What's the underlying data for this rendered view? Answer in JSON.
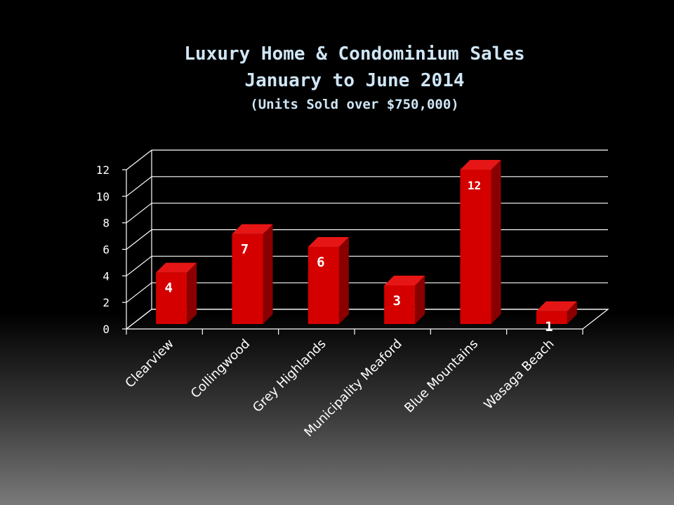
{
  "chart_data": {
    "type": "bar",
    "title": [
      "Luxury Home & Condominium Sales",
      "January to June 2014"
    ],
    "subtitle": "(Units Sold over $750,000)",
    "categories": [
      "Clearview",
      "Collingwood",
      "Grey Highlands",
      "Municipality Meaford",
      "Blue Mountains",
      "Wasaga Beach"
    ],
    "values": [
      4,
      7,
      6,
      3,
      12,
      1
    ],
    "data_labels": [
      "4",
      "7",
      "6",
      "3",
      "12",
      "1"
    ],
    "ylim": [
      0,
      12
    ],
    "yticks": [
      "0",
      "2",
      "4",
      "6",
      "8",
      "10",
      "12"
    ],
    "xlabel": "",
    "ylabel": "",
    "grid": true,
    "three_d": true,
    "bar_color": "#d40000",
    "bar_top_color": "#e61616",
    "bar_side_color": "#8a0000",
    "label_color": "#ffffff"
  }
}
